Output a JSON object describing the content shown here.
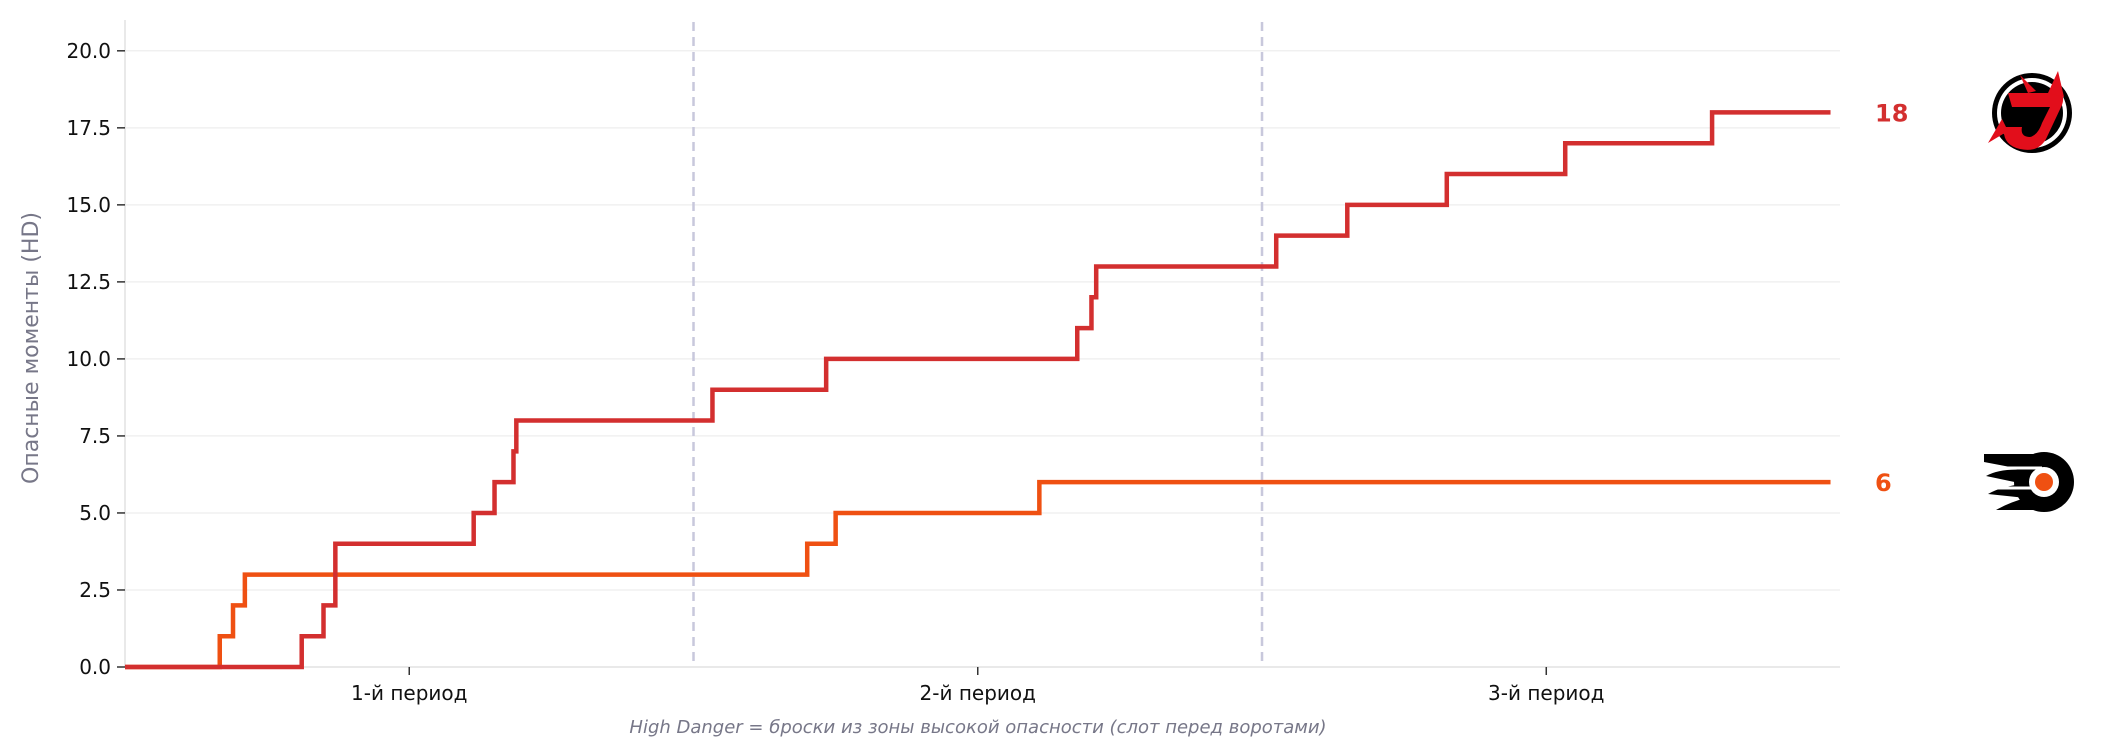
{
  "chart_data": {
    "type": "line",
    "step": true,
    "ylabel": "Опасные моменты (HD)",
    "xlabel": "",
    "note": "High Danger = броски из зоны высокой опасности (слот перед воротами)",
    "xlim": [
      0,
      3.62
    ],
    "ylim": [
      0,
      21
    ],
    "yticks": [
      0,
      2.5,
      5,
      7.5,
      10,
      12.5,
      15,
      17.5,
      20
    ],
    "ytick_labels": [
      "0.0",
      "2.5",
      "5.0",
      "7.5",
      "10.0",
      "12.5",
      "15.0",
      "17.5",
      "20.0"
    ],
    "period_lines": [
      1.2,
      2.4
    ],
    "xtick_positions": [
      0.6,
      1.8,
      3.0
    ],
    "xtick_labels": [
      "1-й период",
      "2-й период",
      "3-й период"
    ],
    "grid": true,
    "series": [
      {
        "team": "New Jersey Devils",
        "color": "#d32f2f",
        "final_label": "18",
        "icon": "devils-logo-icon",
        "x": [
          0.373,
          0.419,
          0.444,
          0.736,
          0.78,
          0.82,
          0.826,
          1.24,
          1.48,
          2.01,
          2.04,
          2.05,
          2.43,
          2.58,
          2.79,
          3.04,
          3.35,
          3.6
        ],
        "y": [
          1,
          2,
          4,
          5,
          6,
          7,
          8,
          9,
          10,
          11,
          12,
          13,
          14,
          15,
          16,
          17,
          18,
          18
        ]
      },
      {
        "team": "Philadelphia Flyers",
        "color": "#ef5012",
        "final_label": "6",
        "icon": "flyers-logo-icon",
        "x": [
          0.2,
          0.228,
          0.253,
          1.44,
          1.5,
          1.93,
          3.6
        ],
        "y": [
          1,
          2,
          3,
          4,
          5,
          6,
          6
        ]
      }
    ]
  }
}
